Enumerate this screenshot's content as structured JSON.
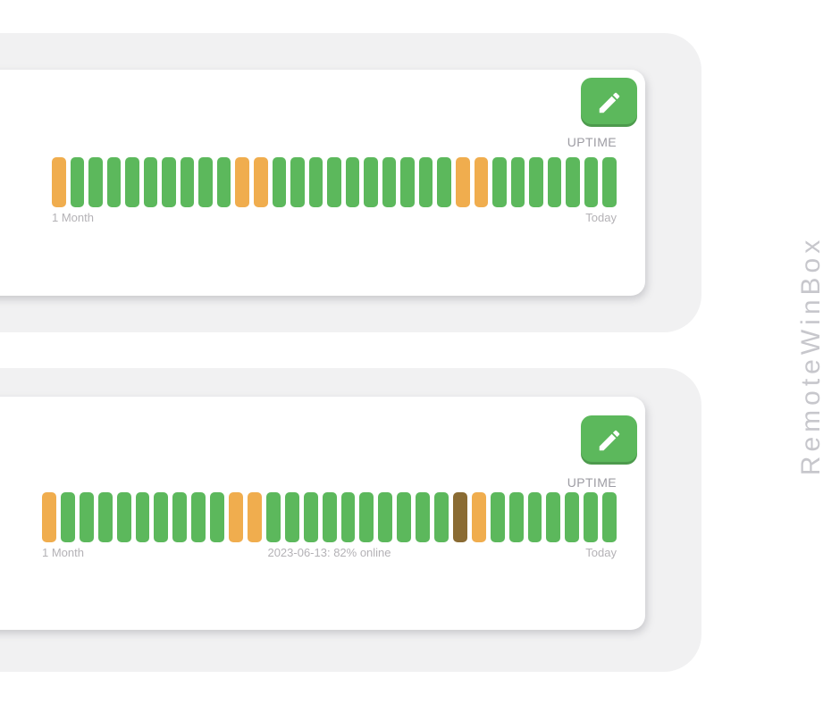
{
  "page": {
    "watermark": "RemoteWinBox"
  },
  "colors": {
    "up": "#5cb85c",
    "partial": "#f0ad4e",
    "partial_hover": "#8a6b33",
    "button_green": "#5cb85c",
    "section_gray": "#f1f1f2",
    "label_gray": "#b4b2b6",
    "uptime_heading_gray": "#9d9ca3",
    "watermark_gray": "#c7c7cc"
  },
  "cards": [
    {
      "uptime_label": "UPTIME",
      "left_label": "1 Month",
      "center_label": "",
      "right_label": "Today",
      "bars": [
        "partial",
        "up",
        "up",
        "up",
        "up",
        "up",
        "up",
        "up",
        "up",
        "up",
        "partial",
        "partial",
        "up",
        "up",
        "up",
        "up",
        "up",
        "up",
        "up",
        "up",
        "up",
        "up",
        "partial",
        "partial",
        "up",
        "up",
        "up",
        "up",
        "up",
        "up",
        "up"
      ]
    },
    {
      "uptime_label": "UPTIME",
      "left_label": "1 Month",
      "center_label": "2023-06-13: 82% online",
      "right_label": "Today",
      "bars": [
        "partial",
        "up",
        "up",
        "up",
        "up",
        "up",
        "up",
        "up",
        "up",
        "up",
        "partial",
        "partial",
        "up",
        "up",
        "up",
        "up",
        "up",
        "up",
        "up",
        "up",
        "up",
        "up",
        "partial_hover",
        "partial",
        "up",
        "up",
        "up",
        "up",
        "up",
        "up",
        "up"
      ]
    }
  ],
  "chart_data": [
    {
      "type": "bar",
      "subtype": "uptime-status-strip",
      "title": "UPTIME",
      "x_start_label": "1 Month",
      "x_end_label": "Today",
      "num_bars": 31,
      "statuses": [
        "partial",
        "up",
        "up",
        "up",
        "up",
        "up",
        "up",
        "up",
        "up",
        "up",
        "partial",
        "partial",
        "up",
        "up",
        "up",
        "up",
        "up",
        "up",
        "up",
        "up",
        "up",
        "up",
        "partial",
        "partial",
        "up",
        "up",
        "up",
        "up",
        "up",
        "up",
        "up"
      ],
      "legend": {
        "up": "fully online (green)",
        "partial": "partial outage (orange)"
      }
    },
    {
      "type": "bar",
      "subtype": "uptime-status-strip",
      "title": "UPTIME",
      "x_start_label": "1 Month",
      "x_end_label": "Today",
      "num_bars": 31,
      "statuses": [
        "partial",
        "up",
        "up",
        "up",
        "up",
        "up",
        "up",
        "up",
        "up",
        "up",
        "partial",
        "partial",
        "up",
        "up",
        "up",
        "up",
        "up",
        "up",
        "up",
        "up",
        "up",
        "up",
        "partial_hover",
        "partial",
        "up",
        "up",
        "up",
        "up",
        "up",
        "up",
        "up"
      ],
      "hovered_bar_index": 22,
      "hover_tooltip": "2023-06-13: 82% online",
      "legend": {
        "up": "fully online (green)",
        "partial": "partial outage (orange)",
        "partial_hover": "hovered partial-outage day (darkened)"
      }
    }
  ]
}
